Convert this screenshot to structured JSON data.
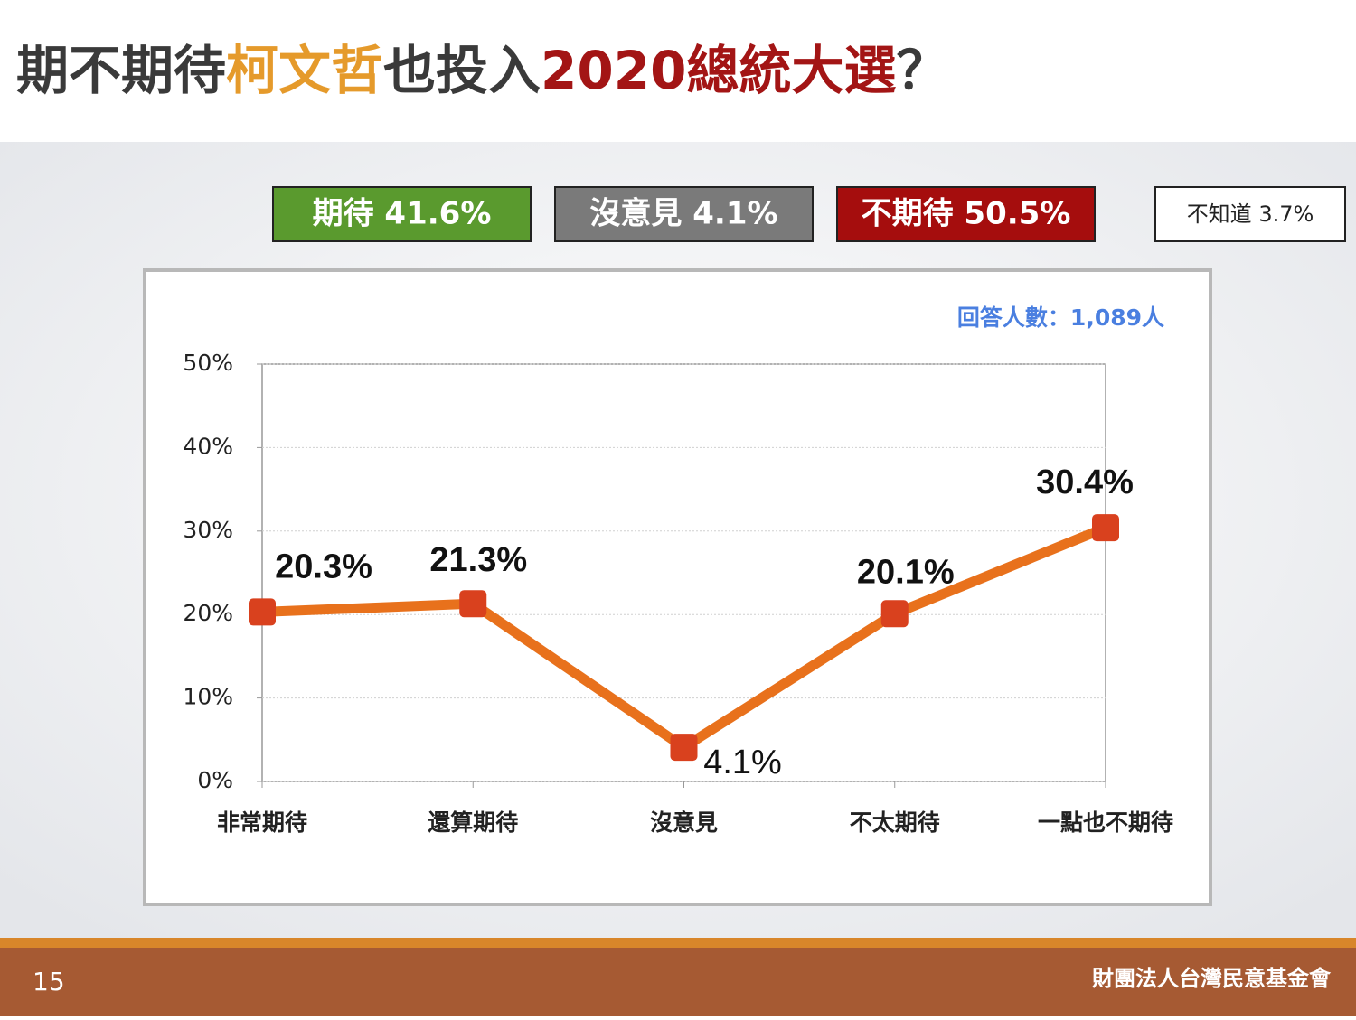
{
  "title_parts": [
    {
      "text": "期不期待",
      "color": "#3a3a3a"
    },
    {
      "text": "柯文哲",
      "color": "#e59a2b"
    },
    {
      "text": "也投入",
      "color": "#3a3a3a"
    },
    {
      "text": "2020總統大選",
      "color": "#a31515"
    },
    {
      "text": "？",
      "color": "#3a3a3a"
    }
  ],
  "summary": [
    {
      "text": "期待 41.6%",
      "color": "#5a9a2e",
      "text_color": "#ffffff"
    },
    {
      "text": "沒意見 4.1%",
      "color": "#7a7a7a",
      "text_color": "#ffffff"
    },
    {
      "text": "不期待 50.5%",
      "color": "#a50d0d",
      "text_color": "#ffffff"
    },
    {
      "text": "不知道 3.7%",
      "color": "#ffffff",
      "text_color": "#222222"
    }
  ],
  "chart_data": {
    "type": "line",
    "note": "回答人數：1,089人",
    "categories": [
      "非常期待",
      "還算期待",
      "沒意見",
      "不太期待",
      "一點也不期待"
    ],
    "series": [
      {
        "name": "比例",
        "color": "#e8711c",
        "marker_color": "#d9411e",
        "values": [
          20.3,
          21.3,
          4.1,
          20.1,
          30.4
        ],
        "value_labels": [
          "20.3%",
          "21.3%",
          "4.1%",
          "20.1%",
          "30.4%"
        ]
      }
    ],
    "ylim": [
      0,
      50
    ],
    "yticks": [
      {
        "value": 0,
        "label": "0%"
      },
      {
        "value": 10,
        "label": "10%"
      },
      {
        "value": 20,
        "label": "20%"
      },
      {
        "value": 30,
        "label": "30%"
      },
      {
        "value": 40,
        "label": "40%"
      },
      {
        "value": 50,
        "label": "50%"
      }
    ],
    "grid": true
  },
  "footer": {
    "page": "15",
    "org": "財團法人台灣民意基金會"
  }
}
